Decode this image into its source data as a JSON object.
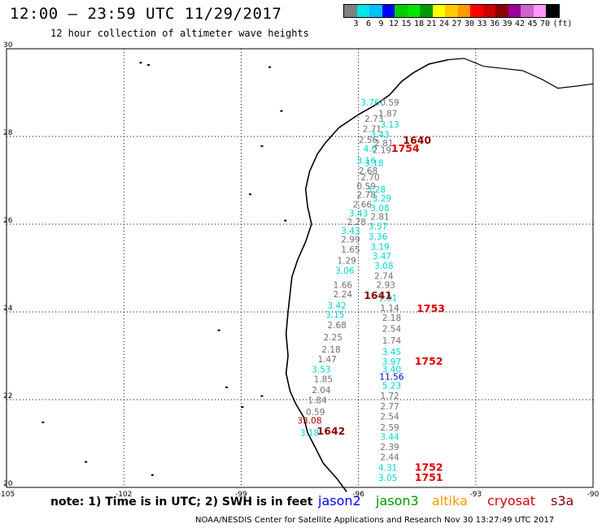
{
  "header": {
    "title": "12:00 – 23:59 UTC 11/29/2017",
    "subtitle": "12 hour collection of altimeter wave heights"
  },
  "scale": {
    "colors": [
      "#808080",
      "#00e6e6",
      "#00bfff",
      "#0000ff",
      "#00cc00",
      "#00e600",
      "#009900",
      "#ffff00",
      "#ffcc00",
      "#ff9900",
      "#ff0000",
      "#cc0000",
      "#8b0000",
      "#990099",
      "#cc66cc",
      "#ff99ff",
      "#000000"
    ],
    "labels": [
      "3",
      "6",
      "9",
      "12",
      "15",
      "18",
      "21",
      "24",
      "27",
      "30",
      "33",
      "36",
      "39",
      "42",
      "45",
      "70",
      "(ft)"
    ]
  },
  "map": {
    "lon_labels": [
      {
        "lon": -105,
        "text": "-105"
      },
      {
        "lon": -102,
        "text": "-102"
      },
      {
        "lon": -99,
        "text": "-99"
      },
      {
        "lon": -96,
        "text": "-96"
      },
      {
        "lon": -93,
        "text": "-93"
      },
      {
        "lon": -90,
        "text": "-90"
      }
    ],
    "lat_labels": [
      {
        "lat": 30,
        "text": "30"
      },
      {
        "lat": 28,
        "text": "28"
      },
      {
        "lat": 26,
        "text": "26"
      },
      {
        "lat": 24,
        "text": "24"
      },
      {
        "lat": 22,
        "text": "22"
      },
      {
        "lat": 20,
        "text": "20"
      }
    ],
    "coastline": [
      [
        -93.7,
        29.75
      ],
      [
        -94.2,
        29.65
      ],
      [
        -94.6,
        29.45
      ],
      [
        -94.9,
        29.25
      ],
      [
        -95.2,
        28.95
      ],
      [
        -95.6,
        28.7
      ],
      [
        -96.0,
        28.5
      ],
      [
        -96.5,
        28.2
      ],
      [
        -96.85,
        27.85
      ],
      [
        -97.05,
        27.6
      ],
      [
        -97.25,
        27.2
      ],
      [
        -97.35,
        26.8
      ],
      [
        -97.3,
        26.4
      ],
      [
        -97.2,
        26.0
      ],
      [
        -97.35,
        25.6
      ],
      [
        -97.55,
        25.2
      ],
      [
        -97.7,
        24.8
      ],
      [
        -97.75,
        24.4
      ],
      [
        -97.8,
        24.0
      ],
      [
        -97.85,
        23.5
      ],
      [
        -97.8,
        23.0
      ],
      [
        -97.85,
        22.6
      ],
      [
        -97.75,
        22.2
      ],
      [
        -97.6,
        21.9
      ],
      [
        -97.4,
        21.6
      ],
      [
        -97.3,
        21.25
      ],
      [
        -97.1,
        20.9
      ],
      [
        -96.9,
        20.55
      ],
      [
        -96.55,
        20.2
      ],
      [
        -96.3,
        19.9
      ]
    ],
    "north_coast": [
      [
        -93.7,
        29.75
      ],
      [
        -93.3,
        29.78
      ],
      [
        -92.8,
        29.6
      ],
      [
        -92.3,
        29.55
      ],
      [
        -91.8,
        29.5
      ],
      [
        -91.3,
        29.3
      ],
      [
        -90.9,
        29.1
      ],
      [
        -90.4,
        29.15
      ],
      [
        -90.0,
        29.2
      ]
    ],
    "offshore_marks": [
      [
        -101.6,
        29.7
      ],
      [
        -101.4,
        29.65
      ],
      [
        -98.3,
        29.6
      ],
      [
        -98.0,
        28.6
      ],
      [
        -98.5,
        27.8
      ],
      [
        -98.8,
        26.7
      ],
      [
        -97.9,
        26.1
      ],
      [
        -99.6,
        23.6
      ],
      [
        -99.4,
        22.3
      ],
      [
        -98.5,
        22.1
      ],
      [
        -99.0,
        21.85
      ],
      [
        -104.1,
        21.5
      ],
      [
        -103.0,
        20.6
      ],
      [
        -101.3,
        20.3
      ]
    ]
  },
  "observations": [
    {
      "lon": -95.7,
      "lat": 28.7,
      "value": "3.76",
      "sat": "jason2-cyan"
    },
    {
      "lon": -95.2,
      "lat": 28.7,
      "value": "0.59",
      "sat": "gray"
    },
    {
      "lon": -95.25,
      "lat": 28.45,
      "value": "1.87",
      "sat": "gray"
    },
    {
      "lon": -95.6,
      "lat": 28.33,
      "value": "2.73",
      "sat": "gray"
    },
    {
      "lon": -95.2,
      "lat": 28.2,
      "value": "3.13",
      "sat": "cyan"
    },
    {
      "lon": -95.65,
      "lat": 28.1,
      "value": "2.71",
      "sat": "gray"
    },
    {
      "lon": -95.45,
      "lat": 27.97,
      "value": "3.43",
      "sat": "cyan"
    },
    {
      "lon": -95.75,
      "lat": 27.85,
      "value": "2.56",
      "sat": "gray"
    },
    {
      "lon": -95.35,
      "lat": 27.78,
      "value": "2.81",
      "sat": "gray"
    },
    {
      "lon": -95.7,
      "lat": 27.65,
      "value": "4.0",
      "sat": "cyan"
    },
    {
      "lon": -95.4,
      "lat": 27.62,
      "value": "2.19",
      "sat": "gray"
    },
    {
      "lon": -95.8,
      "lat": 27.38,
      "value": "3.16",
      "sat": "cyan"
    },
    {
      "lon": -95.6,
      "lat": 27.32,
      "value": "3.18",
      "sat": "cyan"
    },
    {
      "lon": -95.75,
      "lat": 27.15,
      "value": "2.68",
      "sat": "gray"
    },
    {
      "lon": -95.7,
      "lat": 27.0,
      "value": "2.70",
      "sat": "gray"
    },
    {
      "lon": -95.8,
      "lat": 26.8,
      "value": "0.59",
      "sat": "gray"
    },
    {
      "lon": -95.55,
      "lat": 26.72,
      "value": "3.28",
      "sat": "cyan"
    },
    {
      "lon": -95.8,
      "lat": 26.6,
      "value": "2.78",
      "sat": "gray"
    },
    {
      "lon": -95.4,
      "lat": 26.52,
      "value": "3.29",
      "sat": "cyan"
    },
    {
      "lon": -95.9,
      "lat": 26.38,
      "value": "2.66",
      "sat": "gray"
    },
    {
      "lon": -95.45,
      "lat": 26.3,
      "value": "3.08",
      "sat": "cyan"
    },
    {
      "lon": -96.0,
      "lat": 26.18,
      "value": "3.43",
      "sat": "cyan"
    },
    {
      "lon": -95.45,
      "lat": 26.1,
      "value": "2.81",
      "sat": "gray"
    },
    {
      "lon": -96.05,
      "lat": 25.98,
      "value": "2.28",
      "sat": "gray"
    },
    {
      "lon": -95.5,
      "lat": 25.88,
      "value": "3.57",
      "sat": "cyan"
    },
    {
      "lon": -96.2,
      "lat": 25.78,
      "value": "3.43",
      "sat": "cyan"
    },
    {
      "lon": -95.5,
      "lat": 25.65,
      "value": "3.36",
      "sat": "cyan"
    },
    {
      "lon": -96.2,
      "lat": 25.58,
      "value": "2.99",
      "sat": "gray"
    },
    {
      "lon": -95.45,
      "lat": 25.42,
      "value": "3.19",
      "sat": "cyan"
    },
    {
      "lon": -96.2,
      "lat": 25.35,
      "value": "1.65",
      "sat": "gray"
    },
    {
      "lon": -95.4,
      "lat": 25.2,
      "value": "3.47",
      "sat": "cyan"
    },
    {
      "lon": -96.3,
      "lat": 25.1,
      "value": "1.29",
      "sat": "gray"
    },
    {
      "lon": -95.35,
      "lat": 24.98,
      "value": "3.08",
      "sat": "cyan"
    },
    {
      "lon": -96.35,
      "lat": 24.87,
      "value": "3.06",
      "sat": "cyan"
    },
    {
      "lon": -95.35,
      "lat": 24.75,
      "value": "2.74",
      "sat": "gray"
    },
    {
      "lon": -96.4,
      "lat": 24.55,
      "value": "1.66",
      "sat": "gray"
    },
    {
      "lon": -95.3,
      "lat": 24.55,
      "value": "2.93",
      "sat": "gray"
    },
    {
      "lon": -96.4,
      "lat": 24.33,
      "value": "2.24",
      "sat": "gray"
    },
    {
      "lon": -95.25,
      "lat": 24.25,
      "value": "1.01",
      "sat": "cyan"
    },
    {
      "lon": -96.55,
      "lat": 24.07,
      "value": "3.42",
      "sat": "cyan"
    },
    {
      "lon": -95.2,
      "lat": 24.02,
      "value": "1.14",
      "sat": "gray"
    },
    {
      "lon": -96.6,
      "lat": 23.87,
      "value": "3.15",
      "sat": "cyan"
    },
    {
      "lon": -95.15,
      "lat": 23.8,
      "value": "2.18",
      "sat": "gray"
    },
    {
      "lon": -96.55,
      "lat": 23.63,
      "value": "2.68",
      "sat": "gray"
    },
    {
      "lon": -95.15,
      "lat": 23.55,
      "value": "2.54",
      "sat": "gray"
    },
    {
      "lon": -96.65,
      "lat": 23.35,
      "value": "2.25",
      "sat": "gray"
    },
    {
      "lon": -95.15,
      "lat": 23.28,
      "value": "1.74",
      "sat": "gray"
    },
    {
      "lon": -96.7,
      "lat": 23.07,
      "value": "2.18",
      "sat": "gray"
    },
    {
      "lon": -95.15,
      "lat": 23.02,
      "value": "3.45",
      "sat": "cyan"
    },
    {
      "lon": -96.8,
      "lat": 22.85,
      "value": "1.47",
      "sat": "gray"
    },
    {
      "lon": -95.15,
      "lat": 22.8,
      "value": "3.97",
      "sat": "cyan"
    },
    {
      "lon": -96.95,
      "lat": 22.62,
      "value": "3.53",
      "sat": "cyan"
    },
    {
      "lon": -95.15,
      "lat": 22.62,
      "value": "3.40",
      "sat": "cyan"
    },
    {
      "lon": -96.9,
      "lat": 22.4,
      "value": "1.85",
      "sat": "gray"
    },
    {
      "lon": -95.15,
      "lat": 22.45,
      "value": "11.56",
      "sat": "blue"
    },
    {
      "lon": -96.95,
      "lat": 22.15,
      "value": "2.04",
      "sat": "gray"
    },
    {
      "lon": -95.15,
      "lat": 22.25,
      "value": "5.23",
      "sat": "cyan"
    },
    {
      "lon": -97.05,
      "lat": 21.92,
      "value": "1.84",
      "sat": "gray"
    },
    {
      "lon": -95.2,
      "lat": 22.02,
      "value": "1.72",
      "sat": "gray"
    },
    {
      "lon": -97.1,
      "lat": 21.65,
      "value": "0.59",
      "sat": "gray"
    },
    {
      "lon": -95.2,
      "lat": 21.78,
      "value": "2.77",
      "sat": "gray"
    },
    {
      "lon": -97.25,
      "lat": 21.45,
      "value": "33.08",
      "sat": "darkred"
    },
    {
      "lon": -95.2,
      "lat": 21.55,
      "value": "2.54",
      "sat": "gray"
    },
    {
      "lon": -97.25,
      "lat": 21.18,
      "value": "3.18",
      "sat": "cyan"
    },
    {
      "lon": -95.2,
      "lat": 21.3,
      "value": "2.59",
      "sat": "gray"
    },
    {
      "lon": -95.2,
      "lat": 21.08,
      "value": "3.44",
      "sat": "cyan"
    },
    {
      "lon": -95.2,
      "lat": 20.85,
      "value": "2.39",
      "sat": "gray"
    },
    {
      "lon": -95.2,
      "lat": 20.62,
      "value": "2.44",
      "sat": "gray"
    },
    {
      "lon": -95.25,
      "lat": 20.38,
      "value": "4.31",
      "sat": "cyan"
    },
    {
      "lon": -95.25,
      "lat": 20.15,
      "value": "3.05",
      "sat": "cyan"
    }
  ],
  "pass_times": [
    {
      "lon": -94.5,
      "lat": 27.83,
      "text": "1640",
      "color": "#8b0000"
    },
    {
      "lon": -94.8,
      "lat": 27.65,
      "text": "1754",
      "color": "#dd0000"
    },
    {
      "lon": -95.5,
      "lat": 24.3,
      "text": "1641",
      "color": "#8b0000"
    },
    {
      "lon": -94.15,
      "lat": 24.0,
      "text": "1753",
      "color": "#dd0000"
    },
    {
      "lon": -94.2,
      "lat": 22.8,
      "text": "1752",
      "color": "#dd0000"
    },
    {
      "lon": -96.7,
      "lat": 21.2,
      "text": "1642",
      "color": "#8b0000"
    },
    {
      "lon": -94.2,
      "lat": 20.38,
      "text": "1752",
      "color": "#dd0000"
    },
    {
      "lon": -94.2,
      "lat": 20.15,
      "text": "1751",
      "color": "#dd0000"
    }
  ],
  "footer": {
    "note": "note: 1) Time is in UTC; 2) SWH is in feet",
    "legend": [
      {
        "label": "jason2",
        "color": "#0000ff"
      },
      {
        "label": "jason3",
        "color": "#009900"
      },
      {
        "label": "altika",
        "color": "#ff9900"
      },
      {
        "label": "cryosat",
        "color": "#dd0000"
      },
      {
        "label": "s3a",
        "color": "#8b0000"
      }
    ],
    "credit": "NOAA/NESDIS Center for Satellite Applications and Research   Nov 30 13:27:49 UTC 2017"
  }
}
